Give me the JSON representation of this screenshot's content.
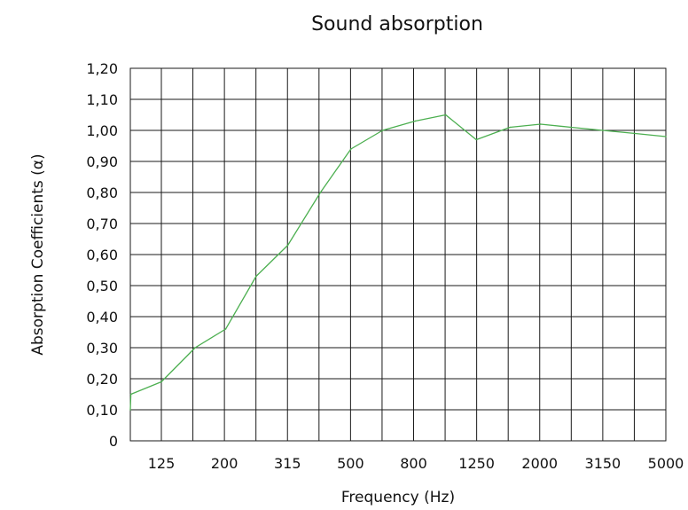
{
  "chart_data": {
    "type": "line",
    "title": "Sound absorption",
    "xlabel": "Frequency (Hz)",
    "ylabel": "Absorption Coefficients (α)",
    "x_tick_labels": [
      "125",
      "200",
      "315",
      "500",
      "800",
      "1250",
      "2000",
      "3150",
      "5000"
    ],
    "y_tick_labels": [
      "0",
      "0,10",
      "0,20",
      "0,30",
      "0,40",
      "0,50",
      "0,60",
      "0,70",
      "0,80",
      "0,90",
      "1,00",
      "1,10",
      "1,20"
    ],
    "ylim": [
      0,
      1.2
    ],
    "x_scale": "log (third-octave bands)",
    "grid": true,
    "colors": {
      "series": "#4caf50",
      "grid": "#1a1a1a"
    },
    "series": [
      {
        "x": [
          80,
          100,
          125,
          160,
          200,
          250,
          315,
          400,
          500,
          630,
          800,
          1000,
          1250,
          1600,
          2000,
          2500,
          3150,
          4000,
          5000
        ],
        "values": [
          0.1,
          0.15,
          0.19,
          0.3,
          0.36,
          0.53,
          0.63,
          0.8,
          0.94,
          1.0,
          1.03,
          1.05,
          0.97,
          1.01,
          1.02,
          1.01,
          1.0,
          0.99,
          0.98
        ]
      }
    ]
  }
}
